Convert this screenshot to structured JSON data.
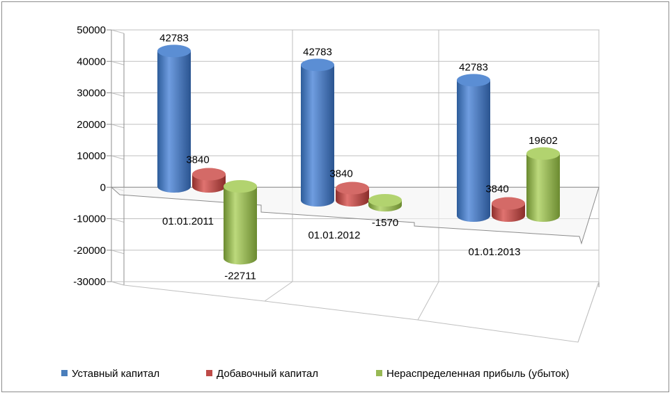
{
  "chart_data": {
    "type": "bar",
    "style": "3d-cylinder",
    "categories": [
      "01.01.2011",
      "01.01.2012",
      "01.01.2013"
    ],
    "series": [
      {
        "name": "Уставный капитал",
        "values": [
          42783,
          42783,
          42783
        ],
        "color": "#4a7ebb"
      },
      {
        "name": "Добавочный капитал",
        "values": [
          3840,
          3840,
          3840
        ],
        "color": "#be4b48"
      },
      {
        "name": "Нераспределенная прибыль (убыток)",
        "values": [
          -22711,
          -1570,
          19602
        ],
        "color": "#98b954"
      }
    ],
    "y_ticks": [
      "50000",
      "40000",
      "30000",
      "20000",
      "10000",
      "0",
      "-10000",
      "-20000",
      "-30000"
    ],
    "data_labels": [
      [
        "42783",
        "42783",
        "42783"
      ],
      [
        "3840",
        "3840",
        "3840"
      ],
      [
        "-22711",
        "-1570",
        "19602"
      ]
    ],
    "ylim": [
      -30000,
      50000
    ],
    "grid": true,
    "legend": "bottom"
  }
}
